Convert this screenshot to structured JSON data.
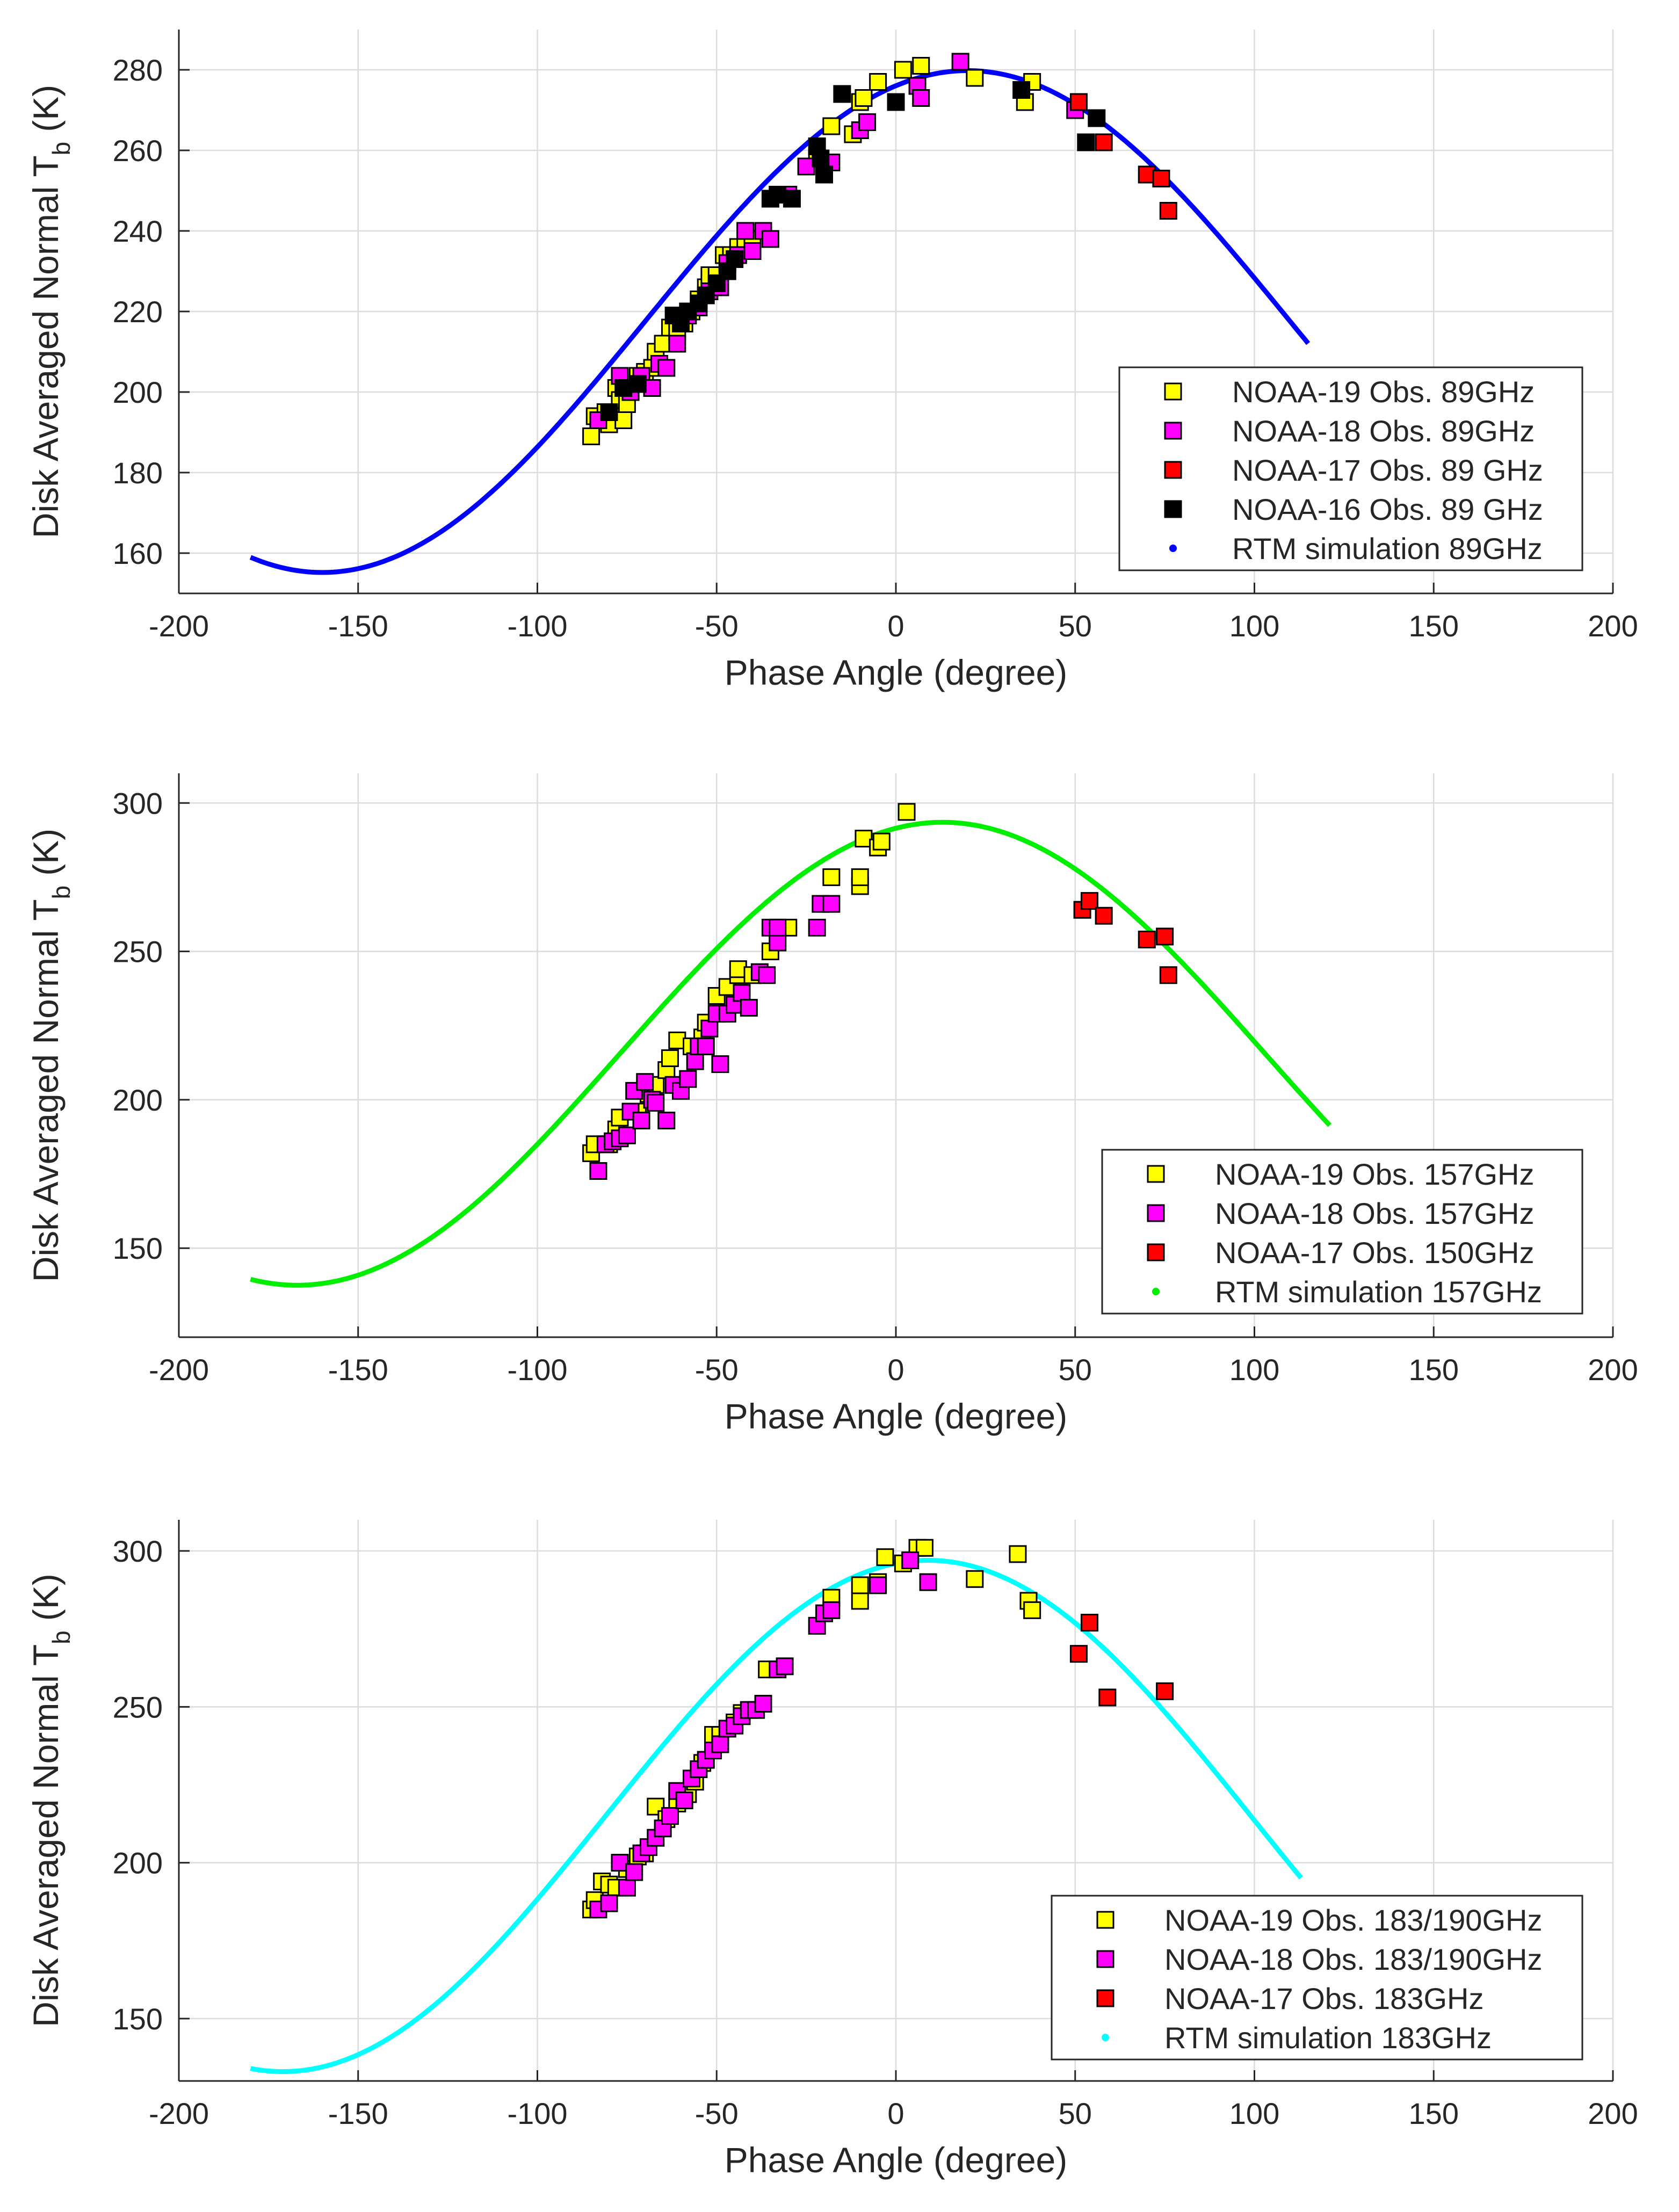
{
  "chart_data": [
    {
      "type": "scatter",
      "xlabel": "Phase Angle (degree)",
      "ylabel_main": "Disk Averaged Normal T",
      "ylabel_sub": "b",
      "ylabel_unit": "(K)",
      "xlim": [
        -200,
        200
      ],
      "ylim": [
        150,
        290
      ],
      "xticks": [
        "-200",
        "-150",
        "-100",
        "-50",
        "0",
        "50",
        "100",
        "150",
        "200"
      ],
      "yticks": [
        "160",
        "180",
        "200",
        "220",
        "240",
        "260",
        "280"
      ],
      "grid": true,
      "legend_position": "right",
      "model": {
        "amp": 62.3,
        "phase_deg": 20,
        "offset": 217.5,
        "x_range": [
          -180,
          115
        ],
        "color": "#0000ff"
      },
      "series": [
        {
          "name": "NOAA-19 Obs. 89GHz",
          "color": "#ffff00",
          "marker": "square",
          "points": [
            [
              -85,
              189
            ],
            [
              -84,
              194
            ],
            [
              -82,
              193
            ],
            [
              -81,
              195
            ],
            [
              -80,
              192
            ],
            [
              -79,
              195
            ],
            [
              -78,
              201
            ],
            [
              -77,
              198
            ],
            [
              -76,
              193
            ],
            [
              -75,
              197
            ],
            [
              -74,
              200
            ],
            [
              -72,
              204
            ],
            [
              -70,
              205
            ],
            [
              -68,
              206
            ],
            [
              -67,
              210
            ],
            [
              -65,
              212
            ],
            [
              -63,
              216
            ],
            [
              -61,
              215
            ],
            [
              -59,
              217
            ],
            [
              -57,
              220
            ],
            [
              -55,
              223
            ],
            [
              -53,
              226
            ],
            [
              -52,
              229
            ],
            [
              -50,
              229
            ],
            [
              -48,
              234
            ],
            [
              -46,
              234
            ],
            [
              -44,
              236
            ],
            [
              -42,
              236
            ],
            [
              -40,
              238
            ],
            [
              -22,
              258
            ],
            [
              -18,
              266
            ],
            [
              -12,
              264
            ],
            [
              -10,
              272
            ],
            [
              -9,
              273
            ],
            [
              -5,
              277
            ],
            [
              2,
              280
            ],
            [
              7,
              281
            ],
            [
              22,
              278
            ],
            [
              36,
              272
            ],
            [
              38,
              277
            ]
          ]
        },
        {
          "name": "NOAA-18 Obs. 89GHz",
          "color": "#ff00ff",
          "marker": "square",
          "points": [
            [
              -83,
              193
            ],
            [
              -80,
              195
            ],
            [
              -77,
              204
            ],
            [
              -74,
              200
            ],
            [
              -71,
              204
            ],
            [
              -68,
              201
            ],
            [
              -66,
              207
            ],
            [
              -64,
              206
            ],
            [
              -61,
              212
            ],
            [
              -58,
              219
            ],
            [
              -55,
              221
            ],
            [
              -52,
              225
            ],
            [
              -49,
              226
            ],
            [
              -47,
              232
            ],
            [
              -44,
              234
            ],
            [
              -42,
              240
            ],
            [
              -40,
              235
            ],
            [
              -37,
              240
            ],
            [
              -35,
              238
            ],
            [
              -30,
              249
            ],
            [
              -25,
              256
            ],
            [
              -18,
              257
            ],
            [
              -10,
              265
            ],
            [
              -8,
              267
            ],
            [
              6,
              276
            ],
            [
              7,
              273
            ],
            [
              18,
              282
            ],
            [
              50,
              270
            ]
          ]
        },
        {
          "name": "NOAA-17 Obs. 89 GHz",
          "color": "#ff0000",
          "marker": "square",
          "points": [
            [
              51,
              272
            ],
            [
              58,
              262
            ],
            [
              70,
              254
            ],
            [
              74,
              253
            ],
            [
              76,
              245
            ]
          ]
        },
        {
          "name": "NOAA-16 Obs. 89 GHz",
          "color": "#000000",
          "marker": "square",
          "points": [
            [
              -80,
              195
            ],
            [
              -76,
              201
            ],
            [
              -72,
              202
            ],
            [
              -62,
              219
            ],
            [
              -60,
              217
            ],
            [
              -58,
              220
            ],
            [
              -55,
              222
            ],
            [
              -53,
              224
            ],
            [
              -50,
              227
            ],
            [
              -47,
              230
            ],
            [
              -45,
              233
            ],
            [
              -35,
              248
            ],
            [
              -33,
              249
            ],
            [
              -29,
              248
            ],
            [
              -22,
              261
            ],
            [
              -21,
              258
            ],
            [
              -20,
              254
            ],
            [
              -15,
              274
            ],
            [
              0,
              272
            ],
            [
              35,
              275
            ],
            [
              53,
              262
            ],
            [
              56,
              268
            ]
          ]
        }
      ],
      "legend": [
        "NOAA-19 Obs. 89GHz",
        "NOAA-18 Obs. 89GHz",
        "NOAA-17 Obs. 89 GHz",
        "NOAA-16 Obs. 89 GHz",
        "RTM simulation 89GHz"
      ]
    },
    {
      "type": "scatter",
      "xlabel": "Phase Angle (degree)",
      "ylabel_main": "Disk Averaged Normal T",
      "ylabel_sub": "b",
      "ylabel_unit": "(K)",
      "xlim": [
        -200,
        200
      ],
      "ylim": [
        120,
        310
      ],
      "xticks": [
        "-200",
        "-150",
        "-100",
        "-50",
        "0",
        "50",
        "100",
        "150",
        "200"
      ],
      "yticks": [
        "150",
        "200",
        "250",
        "300"
      ],
      "grid": true,
      "legend_position": "bottom-right",
      "model": {
        "amp": 78,
        "phase_deg": 13,
        "offset": 215.5,
        "x_range": [
          -180,
          121
        ],
        "color": "#00ee00"
      },
      "series": [
        {
          "name": "NOAA-19 Obs. 157GHz",
          "color": "#ffff00",
          "marker": "square",
          "points": [
            [
              -85,
              182
            ],
            [
              -84,
              185
            ],
            [
              -80,
              185
            ],
            [
              -78,
              190
            ],
            [
              -77,
              194
            ],
            [
              -72,
              196
            ],
            [
              -69,
              202
            ],
            [
              -67,
              205
            ],
            [
              -64,
              210
            ],
            [
              -63,
              214
            ],
            [
              -61,
              220
            ],
            [
              -57,
              218
            ],
            [
              -54,
              221
            ],
            [
              -53,
              226
            ],
            [
              -50,
              235
            ],
            [
              -47,
              238
            ],
            [
              -44,
              242
            ],
            [
              -44,
              244
            ],
            [
              -40,
              242
            ],
            [
              -35,
              250
            ],
            [
              -30,
              258
            ],
            [
              -18,
              275
            ],
            [
              -10,
              272
            ],
            [
              -10,
              275
            ],
            [
              -9,
              288
            ],
            [
              -5,
              285
            ],
            [
              -4,
              287
            ],
            [
              3,
              297
            ]
          ]
        },
        {
          "name": "NOAA-18 Obs. 157GHz",
          "color": "#ff00ff",
          "marker": "square",
          "points": [
            [
              -83,
              176
            ],
            [
              -81,
              185
            ],
            [
              -79,
              186
            ],
            [
              -77,
              187
            ],
            [
              -75,
              188
            ],
            [
              -74,
              196
            ],
            [
              -73,
              203
            ],
            [
              -71,
              193
            ],
            [
              -70,
              206
            ],
            [
              -68,
              200
            ],
            [
              -67,
              199
            ],
            [
              -64,
              193
            ],
            [
              -62,
              205
            ],
            [
              -60,
              203
            ],
            [
              -58,
              207
            ],
            [
              -56,
              213
            ],
            [
              -55,
              218
            ],
            [
              -53,
              218
            ],
            [
              -52,
              224
            ],
            [
              -50,
              229
            ],
            [
              -49,
              212
            ],
            [
              -47,
              229
            ],
            [
              -45,
              232
            ],
            [
              -43,
              236
            ],
            [
              -41,
              231
            ],
            [
              -38,
              243
            ],
            [
              -36,
              242
            ],
            [
              -35,
              258
            ],
            [
              -33,
              253
            ],
            [
              -33,
              258
            ],
            [
              -22,
              258
            ],
            [
              -21,
              266
            ],
            [
              -18,
              266
            ]
          ]
        },
        {
          "name": "NOAA-17 Obs. 150GHz",
          "color": "#ff0000",
          "marker": "square",
          "points": [
            [
              52,
              264
            ],
            [
              54,
              267
            ],
            [
              58,
              262
            ],
            [
              70,
              254
            ],
            [
              75,
              255
            ],
            [
              76,
              242
            ]
          ]
        }
      ],
      "legend": [
        "NOAA-19 Obs. 157GHz",
        "NOAA-18 Obs. 157GHz",
        "NOAA-17 Obs. 150GHz",
        "RTM simulation 157GHz"
      ]
    },
    {
      "type": "scatter",
      "xlabel": "Phase Angle (degree)",
      "ylabel_main": "Disk Averaged Normal T",
      "ylabel_sub": "b",
      "ylabel_unit": "(K)",
      "xlim": [
        -200,
        200
      ],
      "ylim": [
        130,
        310
      ],
      "xticks": [
        "-200",
        "-150",
        "-100",
        "-50",
        "0",
        "50",
        "100",
        "150",
        "200"
      ],
      "yticks": [
        "150",
        "200",
        "250",
        "300"
      ],
      "grid": true,
      "legend_position": "bottom-right",
      "model": {
        "amp": 82,
        "phase_deg": 9,
        "offset": 215,
        "x_range": [
          -180,
          113
        ],
        "color": "#00ffff"
      },
      "series": [
        {
          "name": "NOAA-19 Obs. 183/190GHz",
          "color": "#ffff00",
          "marker": "square",
          "points": [
            [
              -85,
              185
            ],
            [
              -84,
              188
            ],
            [
              -82,
              194
            ],
            [
              -80,
              193
            ],
            [
              -78,
              192
            ],
            [
              -75,
              198
            ],
            [
              -72,
              202
            ],
            [
              -70,
              203
            ],
            [
              -67,
              218
            ],
            [
              -64,
              214
            ],
            [
              -61,
              219
            ],
            [
              -58,
              222
            ],
            [
              -56,
              226
            ],
            [
              -54,
              232
            ],
            [
              -51,
              241
            ],
            [
              -49,
              241
            ],
            [
              -45,
              245
            ],
            [
              -43,
              248
            ],
            [
              -36,
              262
            ],
            [
              -18,
              285
            ],
            [
              -10,
              284
            ],
            [
              -10,
              289
            ],
            [
              -5,
              290
            ],
            [
              -3,
              298
            ],
            [
              2,
              296
            ],
            [
              6,
              301
            ],
            [
              8,
              301
            ],
            [
              22,
              291
            ],
            [
              34,
              299
            ],
            [
              37,
              284
            ],
            [
              38,
              281
            ]
          ]
        },
        {
          "name": "NOAA-18 Obs. 183/190GHz",
          "color": "#ff00ff",
          "marker": "square",
          "points": [
            [
              -83,
              185
            ],
            [
              -80,
              187
            ],
            [
              -77,
              200
            ],
            [
              -75,
              192
            ],
            [
              -73,
              197
            ],
            [
              -71,
              203
            ],
            [
              -69,
              205
            ],
            [
              -67,
              208
            ],
            [
              -65,
              211
            ],
            [
              -63,
              215
            ],
            [
              -61,
              223
            ],
            [
              -59,
              220
            ],
            [
              -57,
              227
            ],
            [
              -55,
              230
            ],
            [
              -53,
              233
            ],
            [
              -51,
              236
            ],
            [
              -49,
              238
            ],
            [
              -47,
              243
            ],
            [
              -45,
              244
            ],
            [
              -43,
              247
            ],
            [
              -41,
              249
            ],
            [
              -39,
              249
            ],
            [
              -37,
              251
            ],
            [
              -33,
              262
            ],
            [
              -31,
              263
            ],
            [
              -22,
              276
            ],
            [
              -20,
              280
            ],
            [
              -18,
              281
            ],
            [
              -5,
              289
            ],
            [
              4,
              297
            ],
            [
              9,
              290
            ]
          ]
        },
        {
          "name": "NOAA-17 Obs. 183GHz",
          "color": "#ff0000",
          "marker": "square",
          "points": [
            [
              51,
              267
            ],
            [
              54,
              277
            ],
            [
              59,
              253
            ],
            [
              75,
              255
            ]
          ]
        }
      ],
      "legend": [
        "NOAA-19 Obs. 183/190GHz",
        "NOAA-18 Obs. 183/190GHz",
        "NOAA-17 Obs. 183GHz",
        "RTM simulation 183GHz"
      ]
    }
  ]
}
